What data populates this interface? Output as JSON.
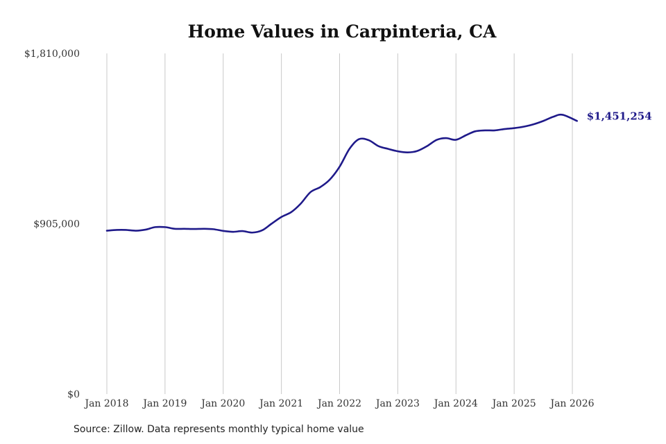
{
  "chart_data": {
    "type": "line",
    "title": "Home Values in Carpinteria, CA",
    "xlabel": "",
    "ylabel": "",
    "ylim": [
      0,
      1810000
    ],
    "y_ticks": [
      {
        "value": 0,
        "label": "$0"
      },
      {
        "value": 905000,
        "label": "$905,000"
      },
      {
        "value": 1810000,
        "label": "$1,810,000"
      }
    ],
    "x_ticks": [
      {
        "value": 2018,
        "label": "Jan 2018"
      },
      {
        "value": 2019,
        "label": "Jan 2019"
      },
      {
        "value": 2020,
        "label": "Jan 2020"
      },
      {
        "value": 2021,
        "label": "Jan 2021"
      },
      {
        "value": 2022,
        "label": "Jan 2022"
      },
      {
        "value": 2023,
        "label": "Jan 2023"
      },
      {
        "value": 2024,
        "label": "Jan 2024"
      },
      {
        "value": 2025,
        "label": "Jan 2025"
      },
      {
        "value": 2026,
        "label": "Jan 2026"
      }
    ],
    "xlim": [
      2018,
      2026.08
    ],
    "grid": "vertical",
    "series": [
      {
        "color": "#1f1a8a",
        "points": [
          [
            2018.0,
            868000
          ],
          [
            2018.17,
            872000
          ],
          [
            2018.33,
            872000
          ],
          [
            2018.5,
            868000
          ],
          [
            2018.67,
            874000
          ],
          [
            2018.83,
            887000
          ],
          [
            2019.0,
            887000
          ],
          [
            2019.17,
            878000
          ],
          [
            2019.33,
            878000
          ],
          [
            2019.5,
            877000
          ],
          [
            2019.67,
            878000
          ],
          [
            2019.83,
            876000
          ],
          [
            2020.0,
            867000
          ],
          [
            2020.17,
            862000
          ],
          [
            2020.33,
            866000
          ],
          [
            2020.5,
            858000
          ],
          [
            2020.67,
            870000
          ],
          [
            2020.83,
            905000
          ],
          [
            2021.0,
            941000
          ],
          [
            2021.17,
            967000
          ],
          [
            2021.33,
            1011000
          ],
          [
            2021.5,
            1073000
          ],
          [
            2021.67,
            1100000
          ],
          [
            2021.83,
            1139000
          ],
          [
            2022.0,
            1208000
          ],
          [
            2022.17,
            1303000
          ],
          [
            2022.33,
            1354000
          ],
          [
            2022.5,
            1349000
          ],
          [
            2022.67,
            1317000
          ],
          [
            2022.83,
            1303000
          ],
          [
            2023.0,
            1290000
          ],
          [
            2023.17,
            1284000
          ],
          [
            2023.33,
            1291000
          ],
          [
            2023.5,
            1317000
          ],
          [
            2023.67,
            1351000
          ],
          [
            2023.83,
            1360000
          ],
          [
            2024.0,
            1351000
          ],
          [
            2024.17,
            1375000
          ],
          [
            2024.33,
            1396000
          ],
          [
            2024.5,
            1401000
          ],
          [
            2024.67,
            1401000
          ],
          [
            2024.83,
            1408000
          ],
          [
            2025.0,
            1413000
          ],
          [
            2025.17,
            1421000
          ],
          [
            2025.33,
            1433000
          ],
          [
            2025.5,
            1451000
          ],
          [
            2025.67,
            1473000
          ],
          [
            2025.83,
            1484000
          ],
          [
            2026.08,
            1451254
          ]
        ]
      }
    ],
    "end_label": "$1,451,254",
    "source_note": "Source: Zillow. Data represents monthly typical home value"
  }
}
